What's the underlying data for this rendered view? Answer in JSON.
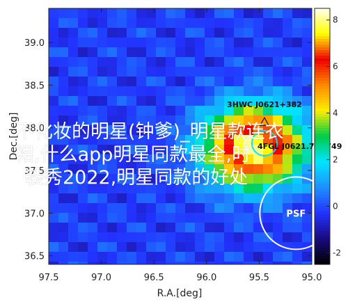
{
  "chart_data": {
    "type": "heatmap",
    "xlabel": "R.A.[deg]",
    "ylabel": "Dec.[deg]",
    "xlim": [
      97.5,
      95.0
    ],
    "ylim": [
      36.4,
      39.4
    ],
    "xticks": [
      "97.5",
      "97.0",
      "96.5",
      "96.0",
      "95.5",
      "95.0"
    ],
    "yticks": [
      "36.5",
      "37.0",
      "37.5",
      "38.0",
      "38.5",
      "39.0"
    ],
    "peak": {
      "ra": 95.55,
      "dec": 37.78,
      "sigma_deg": 0.32
    },
    "colorbar": {
      "ticks": [
        "8",
        "6",
        "4",
        "2",
        "0",
        "-2"
      ],
      "range": [
        -2.5,
        8.5
      ],
      "colors": [
        "#000000",
        "#1a0a80",
        "#2233ff",
        "#1e90ff",
        "#00e5ff",
        "#00cc44",
        "#ffee00",
        "#ff8800",
        "#ee0000",
        "#ffff00",
        "#fffff0"
      ]
    },
    "annotations": [
      {
        "label": "3HWC J0621+382",
        "ra": 95.45,
        "dec": 38.07,
        "marker": "triangle"
      },
      {
        "label": "4FGL J0621.7+3749",
        "ra": 95.45,
        "dec": 37.82,
        "marker": "circle",
        "color": "#00e5ff"
      },
      {
        "label": "PSF",
        "ra": 95.15,
        "dec": 37.0,
        "marker": "ring",
        "color": "#ffffff"
      }
    ]
  },
  "overlay": {
    "line1": "不化妆的明星(钟爹)_明星款连衣",
    "line2": "裙,什么app明星同款最全,时",
    "line3": "装秀2022,明星同款的好处"
  }
}
